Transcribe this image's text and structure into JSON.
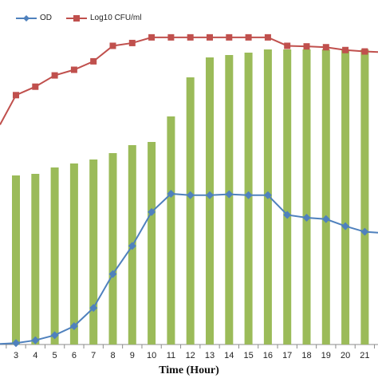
{
  "chart_data": {
    "type": "bar+line",
    "xlabel": "Time (Hour)",
    "categories": [
      "3",
      "4",
      "5",
      "6",
      "7",
      "8",
      "9",
      "10",
      "11",
      "12",
      "13",
      "14",
      "15",
      "16",
      "17",
      "18",
      "19",
      "20",
      "21"
    ],
    "bars": {
      "name": "",
      "color": "#9bbb59",
      "values": [
        212,
        214,
        222,
        227,
        232,
        240,
        250,
        254,
        286,
        335,
        360,
        363,
        366,
        370,
        370,
        370,
        370,
        370,
        370
      ]
    },
    "series": [
      {
        "name": "OD",
        "color": "#4f81bd",
        "marker": "diamond",
        "values": [
          0.5,
          1.5,
          3.3,
          6.5,
          13.0,
          25.0,
          35.0,
          47.0,
          53.5,
          53.0,
          53.0,
          53.3,
          53.0,
          53.0,
          46.0,
          45.0,
          44.5,
          42.0,
          40.0
        ]
      },
      {
        "name": "Log10 CFU/ml",
        "color": "#c0504d",
        "marker": "square",
        "values": [
          88.5,
          91.5,
          95.5,
          97.5,
          100.5,
          106.0,
          107.0,
          109.0,
          109.0,
          109.0,
          109.0,
          109.0,
          109.0,
          109.0,
          106.0,
          105.8,
          105.5,
          104.5,
          104.0
        ]
      }
    ],
    "xrange_partial": [
      2,
      21.7
    ],
    "line_ylim": [
      0,
      120
    ],
    "bar_ylim": [
      0,
      424
    ],
    "grid": false,
    "legend_position": "top-left"
  }
}
